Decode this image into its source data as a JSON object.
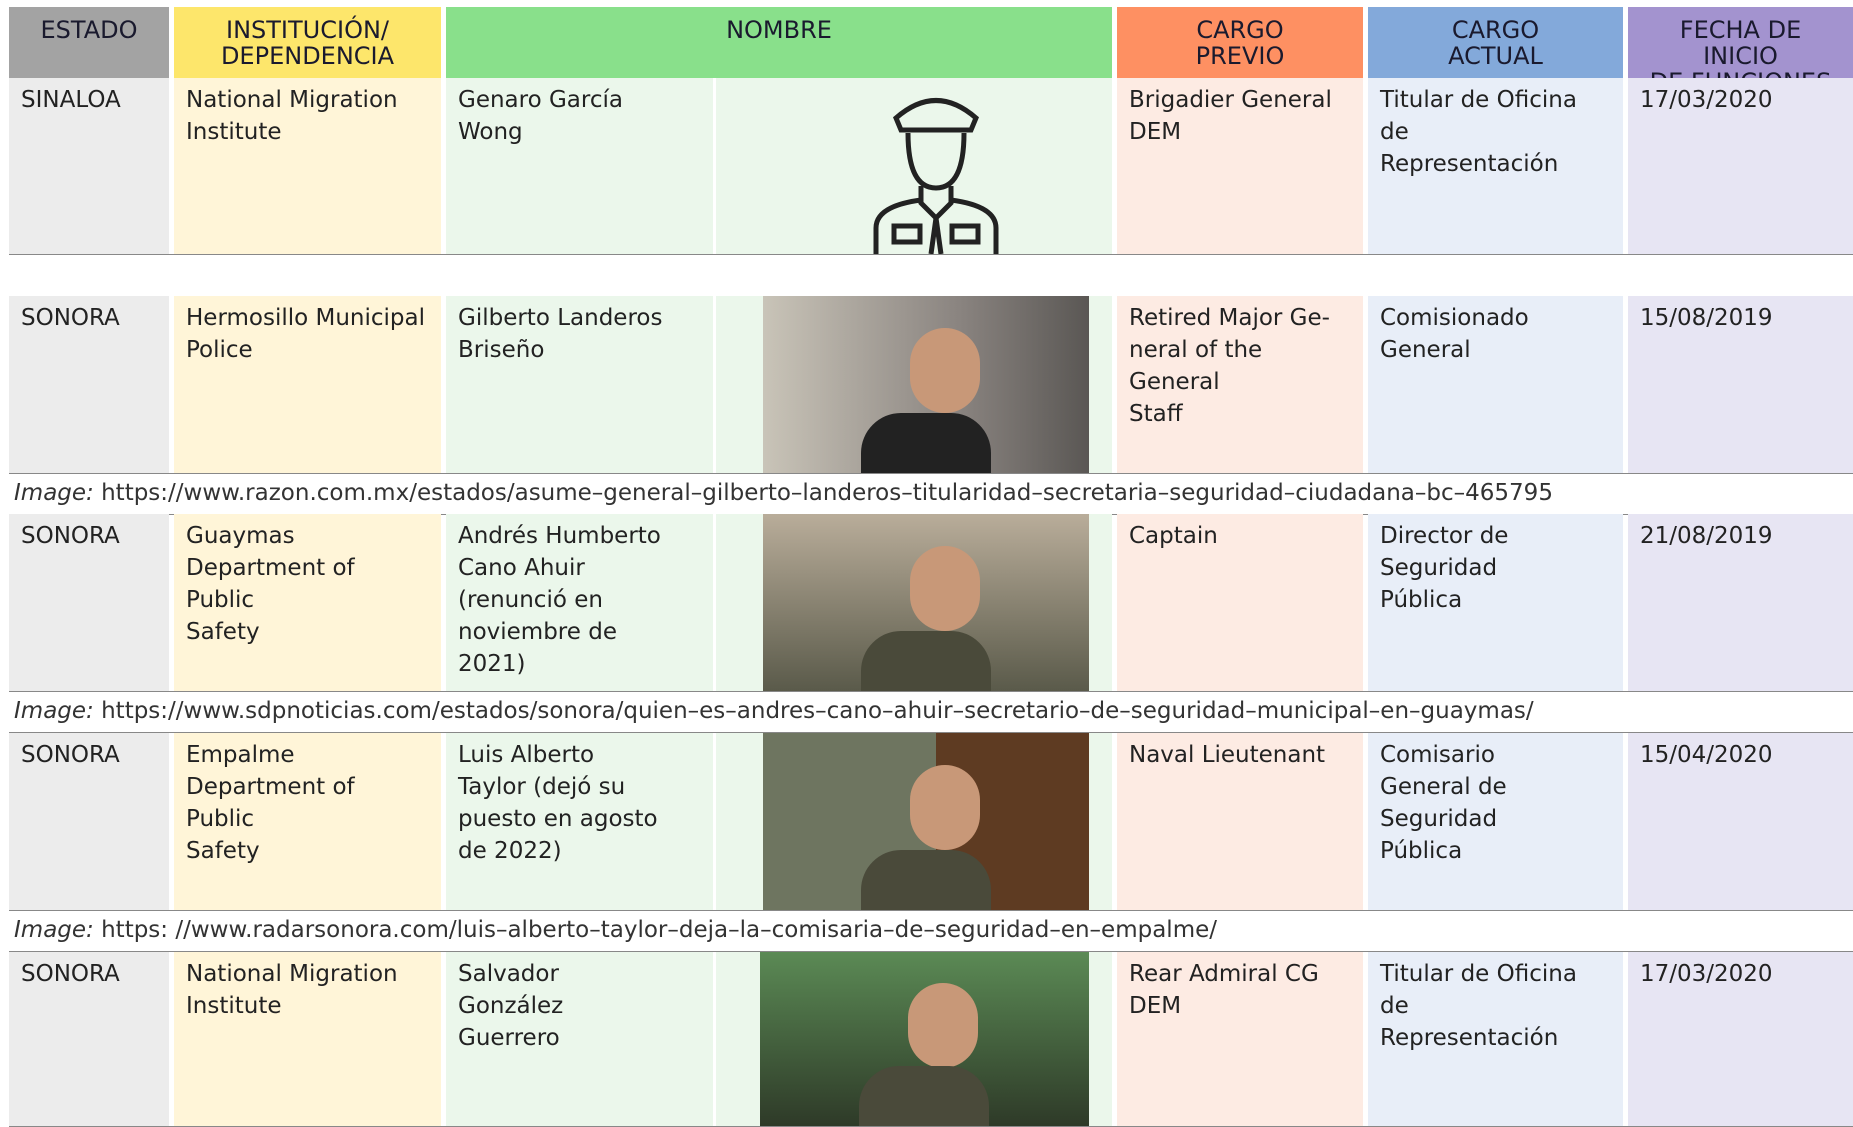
{
  "table": {
    "header": [
      "ESTADO",
      "INSTITUCIÓN/\nDEPENDENCIA",
      "NOMBRE",
      "CARGO\nPREVIO",
      "CARGO\nACTUAL",
      "FECHA DE INICIO\nDE FUNCIONES"
    ],
    "rows": [
      {
        "estado": "SINALOA",
        "institucion": "National Migration\nInstitute",
        "nombre": "Genaro García\nWong",
        "cargo_previo": "Brigadier General\nDEM",
        "cargo_actual": "Titular de Oficina\nde\nRepresentación",
        "fecha": "17/03/2020"
      },
      {
        "estado": "SONORA",
        "institucion": "Hermosillo Municipal\nPolice",
        "nombre": "Gilberto Landeros\nBriseño",
        "cargo_previo": "Retired Major Ge-\nneral of the General\nStaff",
        "cargo_actual": "Comisionado\nGeneral",
        "fecha": "15/08/2019",
        "caption": {
          "label": "Image:",
          "url": "https://www.razon.com.mx/estados/asume–general–gilberto–landeros–titularidad–secretaria–seguridad–ciudadana–bc–465795"
        }
      },
      {
        "estado": "SONORA",
        "institucion": "Guaymas\nDepartment of Public\nSafety",
        "nombre": "Andrés Humberto\nCano Ahuir\n(renunció en\nnoviembre de\n2021)",
        "cargo_previo": "Captain",
        "cargo_actual": "Director de\nSeguridad\nPública",
        "fecha": "21/08/2019",
        "caption": {
          "label": "Image:",
          "url": "https://www.sdpnoticias.com/estados/sonora/quien–es–andres–cano–ahuir–secretario–de–seguridad–municipal–en–guaymas/"
        }
      },
      {
        "estado": "SONORA",
        "institucion": "Empalme\nDepartment of Public\nSafety",
        "nombre": "Luis Alberto\nTaylor (dejó su\npuesto en agosto\nde 2022)",
        "cargo_previo": "Naval Lieutenant",
        "cargo_actual": "Comisario\nGeneral de\nSeguridad\nPública",
        "fecha": "15/04/2020",
        "caption": {
          "label": "Image:",
          "url": "https: //www.radarsonora.com/luis–alberto–taylor–deja–la–comisaria–de–seguridad–en–empalme/"
        }
      },
      {
        "estado": "SONORA",
        "institucion": "National Migration\nInstitute",
        "nombre": "Salvador\nGonzález\nGuerrero",
        "cargo_previo": "Rear Admiral CG\nDEM",
        "cargo_actual": "Titular de Oficina\nde\nRepresentación",
        "fecha": "17/03/2020"
      }
    ]
  }
}
